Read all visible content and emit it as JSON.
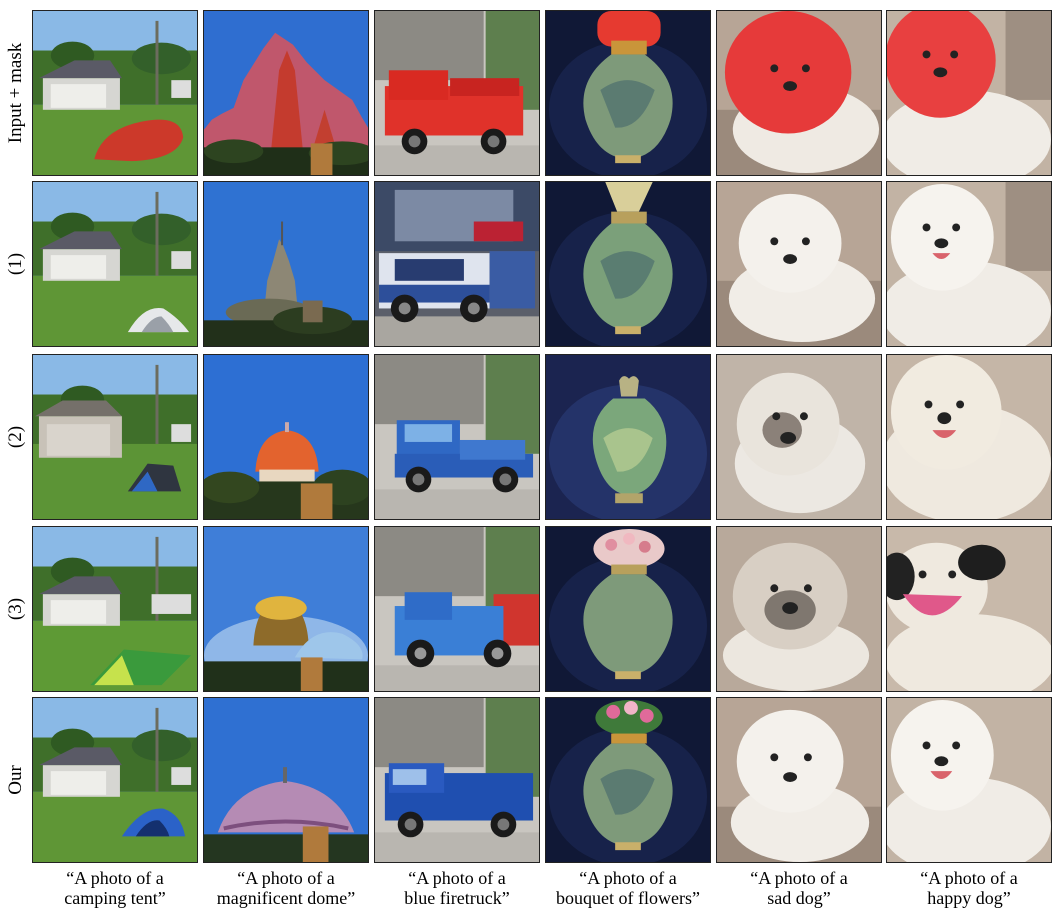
{
  "rows": [
    {
      "label": "Input + mask"
    },
    {
      "label": "(1)"
    },
    {
      "label": "(2)"
    },
    {
      "label": "(3)"
    },
    {
      "label": "Our"
    }
  ],
  "columns": [
    {
      "caption_line1": "“A photo of a",
      "caption_line2": "camping tent”"
    },
    {
      "caption_line1": "“A photo of a",
      "caption_line2": "magnificent dome”"
    },
    {
      "caption_line1": "“A photo of a",
      "caption_line2": "blue firetruck”"
    },
    {
      "caption_line1": "“A photo of a",
      "caption_line2": "bouquet of flowers”"
    },
    {
      "caption_line1": "“A photo of a",
      "caption_line2": "sad dog”"
    },
    {
      "caption_line1": "“A photo of a",
      "caption_line2": "happy dog”"
    }
  ],
  "palette": {
    "sky": "#7fb2e0",
    "grass": "#5e9a35",
    "mask": "#e0352b",
    "deep_blue": "#2f68c4",
    "vase": "#7d9a7c",
    "dark_bg": "#141a33",
    "dog": "#efebe4",
    "floor": "#bca997"
  }
}
